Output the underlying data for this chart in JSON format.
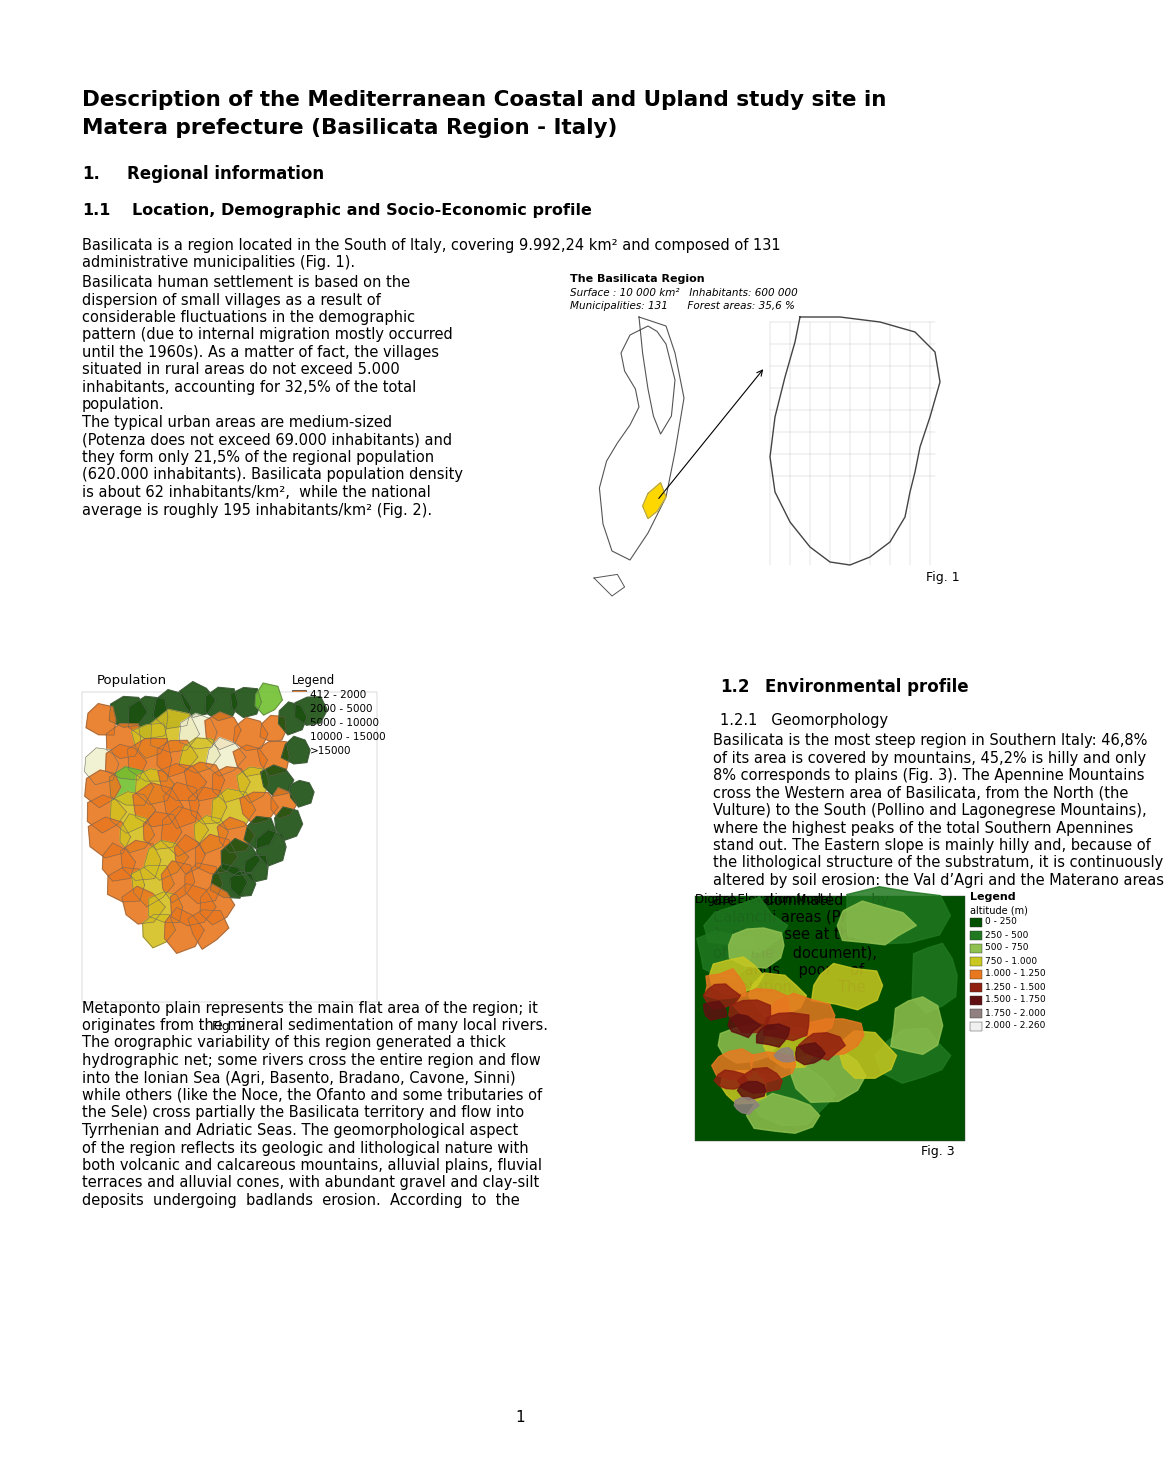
{
  "title_line1": "Description of the Mediterranean Coastal and Upland study site in",
  "title_line2": "Matera prefecture (Basilicata Region - Italy)",
  "section1_num": "1.",
  "section1_text": "Regional information",
  "section11_num": "1.1",
  "section11_text": "Location, Demographic and Socio-Economic profile",
  "para1_full": "Basilicata is a region located in the South of Italy, covering 9.992,24 km² and composed of 131",
  "para1_full2": "administrative municipalities (Fig. 1).",
  "para1_narrow": [
    "Basilicata human settlement is based on the",
    "dispersion of small villages as a result of",
    "considerable fluctuations in the demographic",
    "pattern (due to internal migration mostly occurred",
    "until the 1960s). As a matter of fact, the villages",
    "situated in rural areas do not exceed 5.000",
    "inhabitants, accounting for 32,5% of the total",
    "population.",
    "The typical urban areas are medium-sized",
    "(Potenza does not exceed 69.000 inhabitants) and",
    "they form only 21,5% of the regional population",
    "(620.000 inhabitants). Basilicata population density",
    "is about 62 inhabitants/km²,  while the national",
    "average is roughly 195 inhabitants/km² (Fig. 2)."
  ],
  "fig1_title": "The Basilicata Region",
  "fig1_line1": "Surface : 10 000 km²   Inhabitants: 600 000",
  "fig1_line2": "Municipalities: 131      Forest areas: 35,6 %",
  "fig1_caption": "Fig. 1",
  "section12_num": "1.2",
  "section12_text": "Environmental profile",
  "section121": "1.2.1   Geomorphology",
  "geo_text_top": [
    "Basilicata is the most steep region in Southern Italy: 46,8%",
    "of its area is covered by mountains, 45,2% is hilly and only",
    "8% corresponds to plains (Fig. 3). The Apennine Mountains",
    "cross the Western area of Basilicata, from the North (the",
    "Vulture) to the South (Pollino and Lagonegrese Mountains),",
    "where the highest peaks of the total Southern Apennines",
    "stand out. The Eastern slope is mainly hilly and, because of",
    "the lithological structure of the substratum, it is continuously",
    "altered by soil erosion: the Val d’Agri and the Materano areas"
  ],
  "geo_text_mid_left": [
    "are      dominated      by",
    "Calanchi areas (Photo",
    "1, please see at the end",
    "of     the    document),",
    "badlands    poor    of",
    "vegetation.         The"
  ],
  "geo_text_bottom": [
    "Metaponto plain represents the main flat area of the region; it",
    "originates from the mineral sedimentation of many local rivers.",
    "The orographic variability of this region generated a thick",
    "hydrographic net; some rivers cross the entire region and flow",
    "into the Ionian Sea (Agri, Basento, Bradano, Cavone, Sinni)",
    "while others (like the Noce, the Ofanto and some tributaries of",
    "the Sele) cross partially the Basilicata territory and flow into",
    "Tyrrhenian and Adriatic Seas. The geomorphological aspect",
    "of the region reflects its geologic and lithological nature with",
    "both volcanic and calcareous mountains, alluvial plains, fluvial",
    "terraces and alluvial cones, with abundant gravel and clay-silt",
    "deposits  undergoing  badlands  erosion.  According  to  the"
  ],
  "pop_label": "Population",
  "legend_title": "Legend",
  "legend_items": [
    "412 - 2000",
    "2000 - 5000",
    "5000 - 10000",
    "10000 - 15000",
    ">15000"
  ],
  "legend_colors": [
    "#E87820",
    "#D4C020",
    "#F0F0D0",
    "#70C030",
    "#1A5010"
  ],
  "fig2_caption": "Fig. 2",
  "fig3_title": "Digital Elevation Model",
  "fig3_legend_title": "Legend",
  "fig3_legend_sub": "altitude (m)",
  "fig3_dem_labels": [
    "0 - 250",
    "250 - 500",
    "500 - 750",
    "750 - 1.000",
    "1.000 - 1.250",
    "1.250 - 1.500",
    "1.500 - 1.750",
    "1.750 - 2.000",
    "2.000 - 2.260"
  ],
  "fig3_dem_colors": [
    "#005000",
    "#207820",
    "#90C050",
    "#C8C820",
    "#E87820",
    "#902010",
    "#601010",
    "#908080",
    "#F0F0F0"
  ],
  "fig3_caption": "Fig. 3",
  "page_number": "1",
  "bg_color": "#FFFFFF",
  "text_color": "#000000"
}
